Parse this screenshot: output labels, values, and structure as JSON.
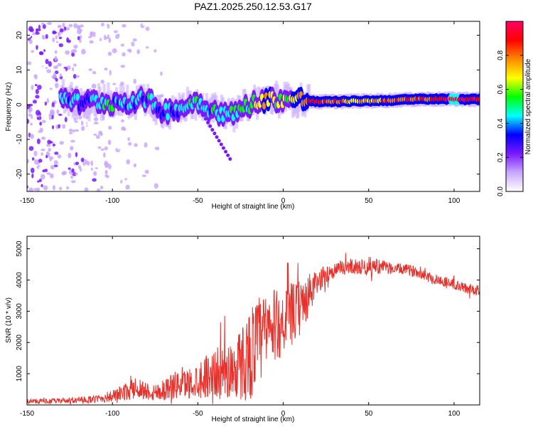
{
  "figure_title": "PAZ1.2025.250.12.53.G17",
  "chart_data": [
    {
      "type": "heatmap",
      "title": "PAZ1.2025.250.12.53.G17",
      "xlabel": "Height of straight line (km)",
      "ylabel": "Frequency (Hz)",
      "xlim": [
        -150,
        115
      ],
      "ylim": [
        -25,
        24
      ],
      "xticks": [
        -150,
        -100,
        -50,
        0,
        50,
        100
      ],
      "yticks": [
        -20,
        -10,
        0,
        10,
        20
      ],
      "colorbar": {
        "label": "Normalized spectral amplitude",
        "range": [
          0,
          1
        ],
        "ticks": [
          0.0,
          0.2,
          0.4,
          0.6,
          0.8
        ],
        "tick_labels": [
          "0.0",
          "0.2",
          "0.4",
          "0.6",
          "0.8"
        ],
        "colors": [
          "#ffffff",
          "#c9a8ff",
          "#7a18ff",
          "#0000ff",
          "#00ffff",
          "#00ff00",
          "#ffff00",
          "#ff8800",
          "#ff0000",
          "#ff0066"
        ]
      },
      "ridge": {
        "x": [
          -128,
          -120,
          -110,
          -100,
          -90,
          -80,
          -70,
          -60,
          -50,
          -40,
          -30,
          -20,
          -10,
          0,
          10,
          20,
          40,
          60,
          80,
          100,
          115
        ],
        "frequency_hz": [
          2.5,
          0.5,
          1,
          0.5,
          1,
          1.5,
          -2,
          -1,
          1,
          -2,
          -3,
          0,
          1.5,
          1.5,
          1.5,
          0.8,
          1,
          1.2,
          1.6,
          1.6,
          1.5
        ],
        "amplitude": [
          0.45,
          0.35,
          0.45,
          0.45,
          0.4,
          0.45,
          0.4,
          0.45,
          0.45,
          0.45,
          0.5,
          0.55,
          0.7,
          0.6,
          0.75,
          0.85,
          0.7,
          0.75,
          0.8,
          0.9,
          0.85
        ]
      }
    },
    {
      "type": "line",
      "xlabel": "Height of straight line (km)",
      "ylabel": "SNR (10 * v/v)",
      "xlim": [
        -150,
        115
      ],
      "ylim": [
        0,
        5400
      ],
      "xticks": [
        -150,
        -100,
        -50,
        0,
        50,
        100
      ],
      "yticks": [
        1000,
        2000,
        3000,
        4000,
        5000
      ],
      "series": [
        {
          "name": "SNR",
          "color": "#e8302a",
          "x": [
            -150,
            -140,
            -130,
            -120,
            -110,
            -100,
            -90,
            -85,
            -80,
            -75,
            -70,
            -65,
            -60,
            -55,
            -50,
            -45,
            -40,
            -35,
            -30,
            -25,
            -20,
            -15,
            -10,
            -5,
            0,
            5,
            10,
            15,
            20,
            25,
            30,
            35,
            40,
            45,
            50,
            55,
            60,
            65,
            70,
            75,
            80,
            85,
            90,
            95,
            100,
            105,
            110,
            115
          ],
          "mean": [
            120,
            120,
            130,
            150,
            180,
            280,
            450,
            550,
            450,
            400,
            500,
            600,
            650,
            700,
            800,
            950,
            1000,
            1050,
            1150,
            1300,
            1600,
            2000,
            2300,
            2500,
            2700,
            2900,
            3100,
            3500,
            3900,
            4200,
            4300,
            4400,
            4450,
            4400,
            4450,
            4450,
            4400,
            4350,
            4350,
            4300,
            4250,
            4100,
            4000,
            3950,
            3850,
            3750,
            3700,
            3700
          ],
          "spread": [
            80,
            80,
            80,
            100,
            120,
            200,
            300,
            350,
            300,
            300,
            350,
            450,
            450,
            500,
            600,
            700,
            800,
            900,
            1000,
            1200,
            1500,
            1500,
            1400,
            1200,
            1100,
            1000,
            900,
            700,
            400,
            300,
            250,
            250,
            250,
            250,
            300,
            250,
            200,
            180,
            180,
            180,
            180,
            180,
            180,
            180,
            180,
            180,
            180,
            180
          ]
        }
      ]
    }
  ]
}
